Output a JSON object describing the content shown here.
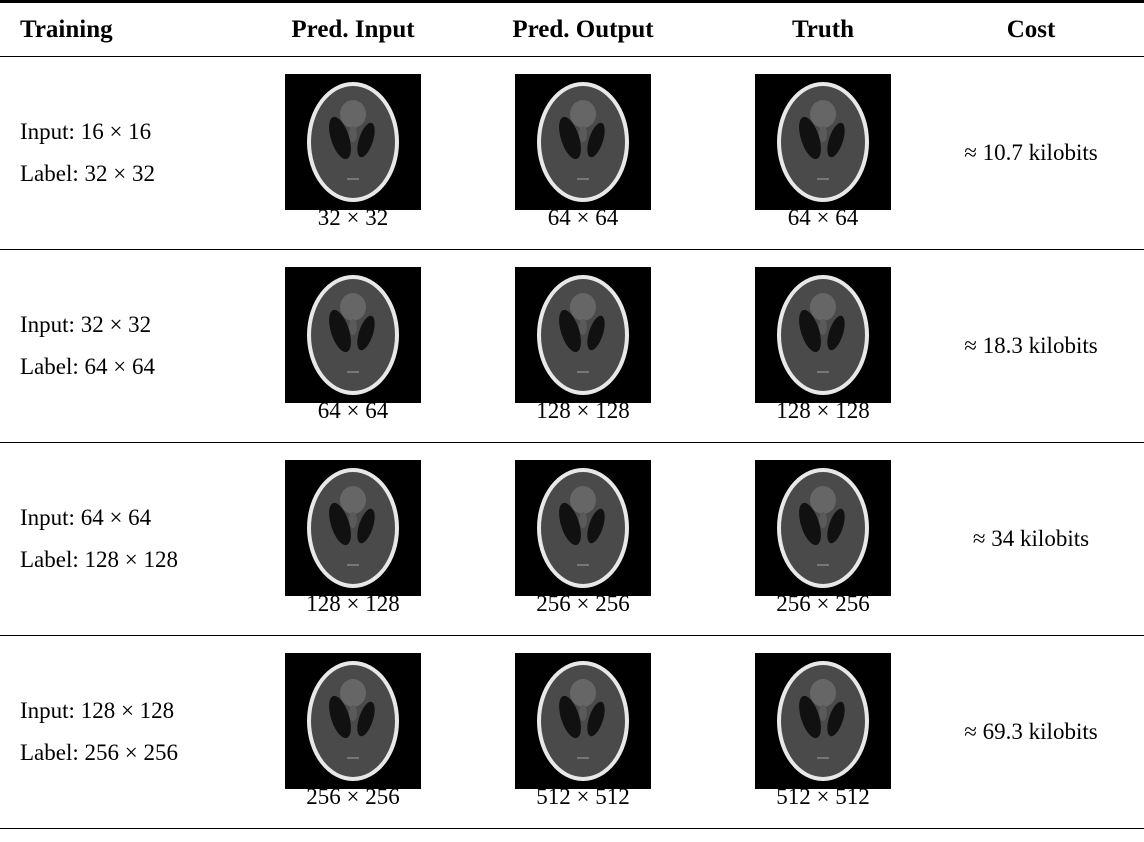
{
  "table": {
    "header": [
      "Training",
      "Pred. Input",
      "Pred. Output",
      "Truth",
      "Cost"
    ],
    "rows": [
      {
        "training": [
          "Input: 16 × 16",
          "Label: 32 × 32"
        ],
        "pred_input": "32 × 32",
        "pred_output": "64 × 64",
        "truth": "64 × 64",
        "cost": "≈ 10.7 kilobits"
      },
      {
        "training": [
          "Input: 32 × 32",
          "Label: 64 × 64"
        ],
        "pred_input": "64 × 64",
        "pred_output": "128 × 128",
        "truth": "128 × 128",
        "cost": "≈ 18.3 kilobits"
      },
      {
        "training": [
          "Input: 64 × 64",
          "Label: 128 × 128"
        ],
        "pred_input": "128 × 128",
        "pred_output": "256 × 256",
        "truth": "256 × 256",
        "cost": "≈ 34 kilobits"
      },
      {
        "training": [
          "Input: 128 × 128",
          "Label: 256 × 256"
        ],
        "pred_input": "256 × 256",
        "pred_output": "512 × 512",
        "truth": "512 × 512",
        "cost": "≈ 69.3 kilobits"
      }
    ]
  }
}
